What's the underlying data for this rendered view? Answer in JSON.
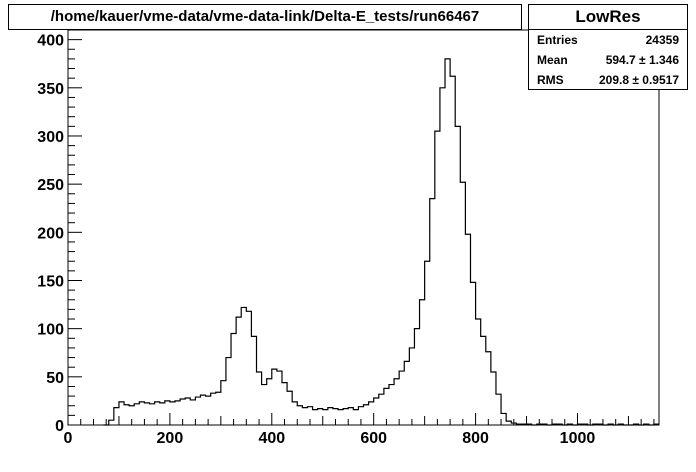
{
  "chart_data": {
    "type": "histogram",
    "title": "/home/kauer/vme-data/vme-data-link/Delta-E_tests/run66467",
    "xlabel": "",
    "ylabel": "",
    "xlim": [
      0,
      1160
    ],
    "ylim": [
      0,
      410
    ],
    "x_ticks": [
      0,
      200,
      400,
      600,
      800,
      1000
    ],
    "y_ticks": [
      0,
      50,
      100,
      150,
      200,
      250,
      300,
      350,
      400
    ],
    "grid": false,
    "stats": {
      "name": "LowRes",
      "entries_label": "Entries",
      "entries": "24359",
      "mean_label": "Mean",
      "mean": "594.7 ± 1.346",
      "rms_label": "RMS",
      "rms": "209.8 ± 0.9517"
    },
    "bin_width": 10,
    "bins": [
      [
        70,
        0
      ],
      [
        80,
        5
      ],
      [
        90,
        18
      ],
      [
        100,
        24
      ],
      [
        110,
        21
      ],
      [
        120,
        20
      ],
      [
        130,
        22
      ],
      [
        140,
        24
      ],
      [
        150,
        23
      ],
      [
        160,
        22
      ],
      [
        170,
        24
      ],
      [
        180,
        23
      ],
      [
        190,
        25
      ],
      [
        200,
        24
      ],
      [
        210,
        25
      ],
      [
        220,
        27
      ],
      [
        230,
        28
      ],
      [
        240,
        26
      ],
      [
        250,
        29
      ],
      [
        260,
        31
      ],
      [
        270,
        30
      ],
      [
        280,
        33
      ],
      [
        290,
        34
      ],
      [
        300,
        46
      ],
      [
        310,
        70
      ],
      [
        320,
        95
      ],
      [
        330,
        112
      ],
      [
        340,
        122
      ],
      [
        350,
        118
      ],
      [
        360,
        92
      ],
      [
        370,
        55
      ],
      [
        380,
        42
      ],
      [
        390,
        48
      ],
      [
        400,
        58
      ],
      [
        410,
        56
      ],
      [
        420,
        44
      ],
      [
        430,
        35
      ],
      [
        440,
        24
      ],
      [
        450,
        20
      ],
      [
        460,
        18
      ],
      [
        470,
        19
      ],
      [
        480,
        16
      ],
      [
        490,
        17
      ],
      [
        500,
        16
      ],
      [
        510,
        18
      ],
      [
        520,
        17
      ],
      [
        530,
        16
      ],
      [
        540,
        17
      ],
      [
        550,
        18
      ],
      [
        560,
        16
      ],
      [
        570,
        19
      ],
      [
        580,
        21
      ],
      [
        590,
        24
      ],
      [
        600,
        28
      ],
      [
        610,
        32
      ],
      [
        620,
        38
      ],
      [
        630,
        42
      ],
      [
        640,
        48
      ],
      [
        650,
        56
      ],
      [
        660,
        66
      ],
      [
        670,
        80
      ],
      [
        680,
        100
      ],
      [
        690,
        130
      ],
      [
        700,
        170
      ],
      [
        710,
        235
      ],
      [
        720,
        305
      ],
      [
        730,
        350
      ],
      [
        740,
        380
      ],
      [
        750,
        362
      ],
      [
        760,
        310
      ],
      [
        770,
        252
      ],
      [
        780,
        198
      ],
      [
        790,
        148
      ],
      [
        800,
        110
      ],
      [
        810,
        92
      ],
      [
        820,
        76
      ],
      [
        830,
        55
      ],
      [
        840,
        32
      ],
      [
        850,
        12
      ],
      [
        860,
        4
      ],
      [
        870,
        2
      ],
      [
        880,
        1
      ],
      [
        890,
        1
      ],
      [
        900,
        1
      ],
      [
        910,
        0
      ],
      [
        920,
        1
      ],
      [
        930,
        1
      ],
      [
        940,
        0
      ],
      [
        950,
        1
      ],
      [
        960,
        1
      ],
      [
        970,
        0
      ],
      [
        980,
        1
      ],
      [
        990,
        0
      ],
      [
        1000,
        1
      ],
      [
        1010,
        1
      ],
      [
        1020,
        0
      ],
      [
        1030,
        1
      ],
      [
        1040,
        1
      ],
      [
        1050,
        0
      ],
      [
        1060,
        1
      ],
      [
        1070,
        0
      ],
      [
        1080,
        1
      ],
      [
        1090,
        0
      ],
      [
        1100,
        0
      ],
      [
        1110,
        1
      ],
      [
        1120,
        0
      ],
      [
        1130,
        1
      ],
      [
        1140,
        0
      ],
      [
        1150,
        1
      ]
    ]
  }
}
